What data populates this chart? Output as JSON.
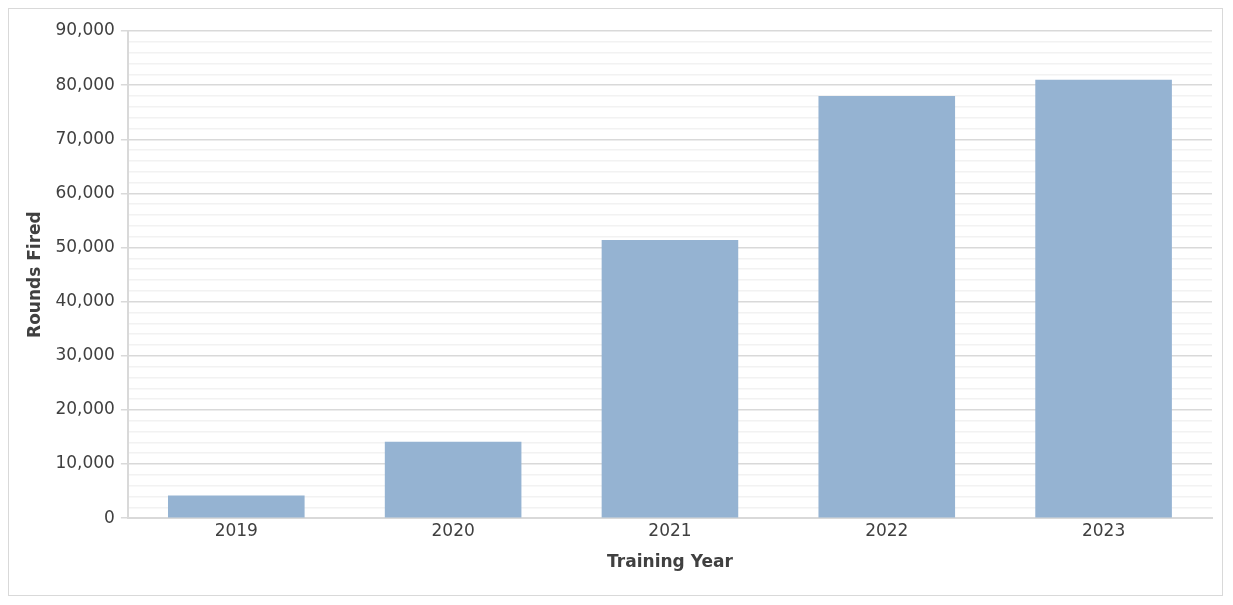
{
  "chart_data": {
    "type": "bar",
    "xlabel": "Training Year",
    "ylabel": "Rounds Fired",
    "categories": [
      "2019",
      "2020",
      "2021",
      "2022",
      "2023"
    ],
    "values": [
      4200,
      14100,
      51400,
      78000,
      81000
    ],
    "color": "#95b3d2",
    "ylim": [
      0,
      90000
    ],
    "yticks": [
      0,
      {
        "value": 2000,
        "label": null
      },
      {
        "value": 4000,
        "label": null
      },
      {
        "value": 6000,
        "label": null
      },
      {
        "value": 8000,
        "label": null
      },
      {
        "value": 10000,
        "label": "10,000"
      },
      {
        "value": 12000,
        "label": null
      },
      {
        "value": 14000,
        "label": null
      },
      {
        "value": 16000,
        "label": null
      },
      {
        "value": 18000,
        "label": null
      },
      {
        "value": 20000,
        "label": "20,000"
      },
      {
        "value": 22000,
        "label": null
      },
      {
        "value": 24000,
        "label": null
      },
      {
        "value": 26000,
        "label": null
      },
      {
        "value": 28000,
        "label": null
      },
      {
        "value": 30000,
        "label": "30,000"
      },
      {
        "value": 32000,
        "label": null
      },
      {
        "value": 34000,
        "label": null
      },
      {
        "value": 36000,
        "label": null
      },
      {
        "value": 38000,
        "label": null
      },
      {
        "value": 40000,
        "label": "40,000"
      },
      {
        "value": 42000,
        "label": null
      },
      {
        "value": 44000,
        "label": null
      },
      {
        "value": 46000,
        "label": null
      },
      {
        "value": 48000,
        "label": null
      },
      {
        "value": 50000,
        "label": "50,000"
      },
      {
        "value": 52000,
        "label": null
      },
      {
        "value": 54000,
        "label": null
      },
      {
        "value": 56000,
        "label": null
      },
      {
        "value": 58000,
        "label": null
      },
      {
        "value": 60000,
        "label": "60,000"
      },
      {
        "value": 62000,
        "label": null
      },
      {
        "value": 64000,
        "label": null
      },
      {
        "value": 66000,
        "label": null
      },
      {
        "value": 68000,
        "label": null
      },
      {
        "value": 70000,
        "label": "70,000"
      },
      {
        "value": 72000,
        "label": null
      },
      {
        "value": 74000,
        "label": null
      },
      {
        "value": 76000,
        "label": null
      },
      {
        "value": 78000,
        "label": null
      },
      {
        "value": 80000,
        "label": "80,000"
      },
      {
        "value": 82000,
        "label": null
      },
      {
        "value": 84000,
        "label": null
      },
      {
        "value": 86000,
        "label": null
      },
      {
        "value": 88000,
        "label": null
      },
      {
        "value": 90000,
        "label": "90,000"
      }
    ],
    "grid": "y"
  }
}
